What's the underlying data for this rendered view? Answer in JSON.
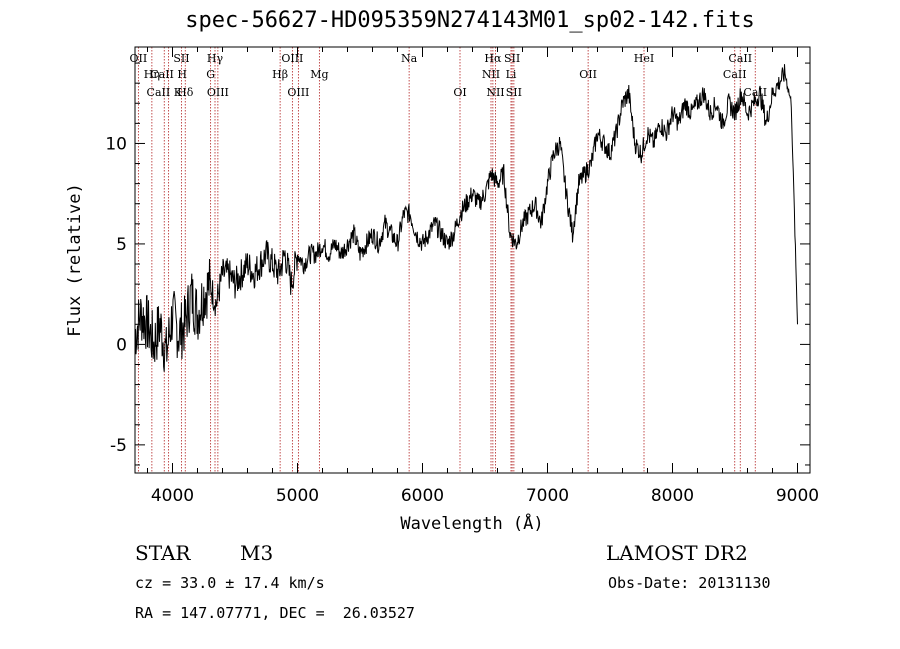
{
  "title": "spec-56627-HD095359N274143M01_sp02-142.fits",
  "info": {
    "class": "STAR",
    "subclass": "M3",
    "survey": "LAMOST DR2",
    "cz": "cz = 33.0 ± 17.4 km/s",
    "obs_date": "Obs-Date: 20131130",
    "radec": "RA = 147.07771, DEC =  26.03527"
  },
  "chart_data": {
    "type": "line",
    "title": "spec-56627-HD095359N274143M01_sp02-142.fits",
    "xlabel": "Wavelength (Å)",
    "ylabel": "Flux (relative)",
    "xlim": [
      3700,
      9100
    ],
    "ylim": [
      -6.4,
      14.8
    ],
    "xticks": [
      4000,
      5000,
      6000,
      7000,
      8000,
      9000
    ],
    "yticks": [
      -5,
      0,
      5,
      10
    ],
    "grid": false,
    "series": [
      {
        "values_x": [
          3700,
          3750,
          3800,
          3850,
          3900,
          3950,
          4000,
          4050,
          4100,
          4150,
          4200,
          4250,
          4300,
          4350,
          4400,
          4450,
          4500,
          4550,
          4600,
          4650,
          4700,
          4750,
          4800,
          4850,
          4900,
          4950,
          5000,
          5050,
          5100,
          5150,
          5200,
          5250,
          5300,
          5350,
          5400,
          5450,
          5500,
          5550,
          5600,
          5650,
          5700,
          5750,
          5800,
          5850,
          5900,
          5950,
          6000,
          6050,
          6100,
          6150,
          6200,
          6250,
          6300,
          6350,
          6400,
          6450,
          6500,
          6550,
          6600,
          6650,
          6700,
          6750,
          6800,
          6850,
          6900,
          6950,
          7000,
          7050,
          7100,
          7150,
          7200,
          7250,
          7300,
          7350,
          7400,
          7450,
          7500,
          7550,
          7600,
          7650,
          7700,
          7750,
          7800,
          7850,
          7900,
          7950,
          8000,
          8050,
          8100,
          8150,
          8200,
          8250,
          8300,
          8350,
          8400,
          8450,
          8500,
          8550,
          8600,
          8650,
          8700,
          8750,
          8800,
          8850,
          8900,
          8950,
          9000
        ],
        "values_y": [
          0.5,
          1.5,
          1.0,
          0.0,
          1.0,
          -0.5,
          1.5,
          0.5,
          1.0,
          2.5,
          1.5,
          2.5,
          3.0,
          2.0,
          3.5,
          3.5,
          3.0,
          3.5,
          4.0,
          3.5,
          4.0,
          4.5,
          4.0,
          3.5,
          4.5,
          3.0,
          4.5,
          4.0,
          4.5,
          4.5,
          5.0,
          4.5,
          5.0,
          4.5,
          5.0,
          5.5,
          4.5,
          5.0,
          5.5,
          5.0,
          6.0,
          5.5,
          5.0,
          6.5,
          6.5,
          5.5,
          5.0,
          5.5,
          6.0,
          5.5,
          5.0,
          5.5,
          6.5,
          7.0,
          7.5,
          7.0,
          7.5,
          8.5,
          8.0,
          8.5,
          5.5,
          5.0,
          6.0,
          6.5,
          7.0,
          6.0,
          8.0,
          9.5,
          10.0,
          7.5,
          5.5,
          8.0,
          8.5,
          9.0,
          10.5,
          10.0,
          9.5,
          10.5,
          12.0,
          12.5,
          10.0,
          9.5,
          10.5,
          10.0,
          11.0,
          10.5,
          11.5,
          11.0,
          12.0,
          11.5,
          12.0,
          12.5,
          11.5,
          12.0,
          11.0,
          12.0,
          11.5,
          12.5,
          11.5,
          12.0,
          12.5,
          11.0,
          12.5,
          13.0,
          13.5,
          12.0,
          1.0
        ]
      }
    ],
    "lines": [
      {
        "label": "OII",
        "x": 3727,
        "row": 1
      },
      {
        "label": "Hη",
        "x": 3835,
        "row": 2
      },
      {
        "label": "CaII K",
        "x": 3934,
        "row": 3
      },
      {
        "label": "CaII H",
        "x": 3969,
        "row": 2
      },
      {
        "label": "SII",
        "x": 4072,
        "row": 1
      },
      {
        "label": "Hδ",
        "x": 4102,
        "row": 3
      },
      {
        "label": "Hγ",
        "x": 4340,
        "row": 1
      },
      {
        "label": "G",
        "x": 4305,
        "row": 2
      },
      {
        "label": "OIII",
        "x": 4363,
        "row": 3
      },
      {
        "label": "Hβ",
        "x": 4861,
        "row": 2
      },
      {
        "label": "OIII",
        "x": 4959,
        "row": 1
      },
      {
        "label": "OIII",
        "x": 5007,
        "row": 3
      },
      {
        "label": "Mg",
        "x": 5175,
        "row": 2
      },
      {
        "label": "Na",
        "x": 5893,
        "row": 1
      },
      {
        "label": "OI",
        "x": 6300,
        "row": 3
      },
      {
        "label": "Hα",
        "x": 6563,
        "row": 1
      },
      {
        "label": "NII",
        "x": 6548,
        "row": 2
      },
      {
        "label": "NII",
        "x": 6584,
        "row": 3
      },
      {
        "label": "SII",
        "x": 6717,
        "row": 1
      },
      {
        "label": "Li",
        "x": 6708,
        "row": 2
      },
      {
        "label": "SII",
        "x": 6731,
        "row": 3
      },
      {
        "label": "OII",
        "x": 7325,
        "row": 2
      },
      {
        "label": "HeI",
        "x": 7772,
        "row": 1
      },
      {
        "label": "CaII",
        "x": 8498,
        "row": 2
      },
      {
        "label": "CaII",
        "x": 8542,
        "row": 1
      },
      {
        "label": "CaII",
        "x": 8662,
        "row": 3
      }
    ]
  }
}
